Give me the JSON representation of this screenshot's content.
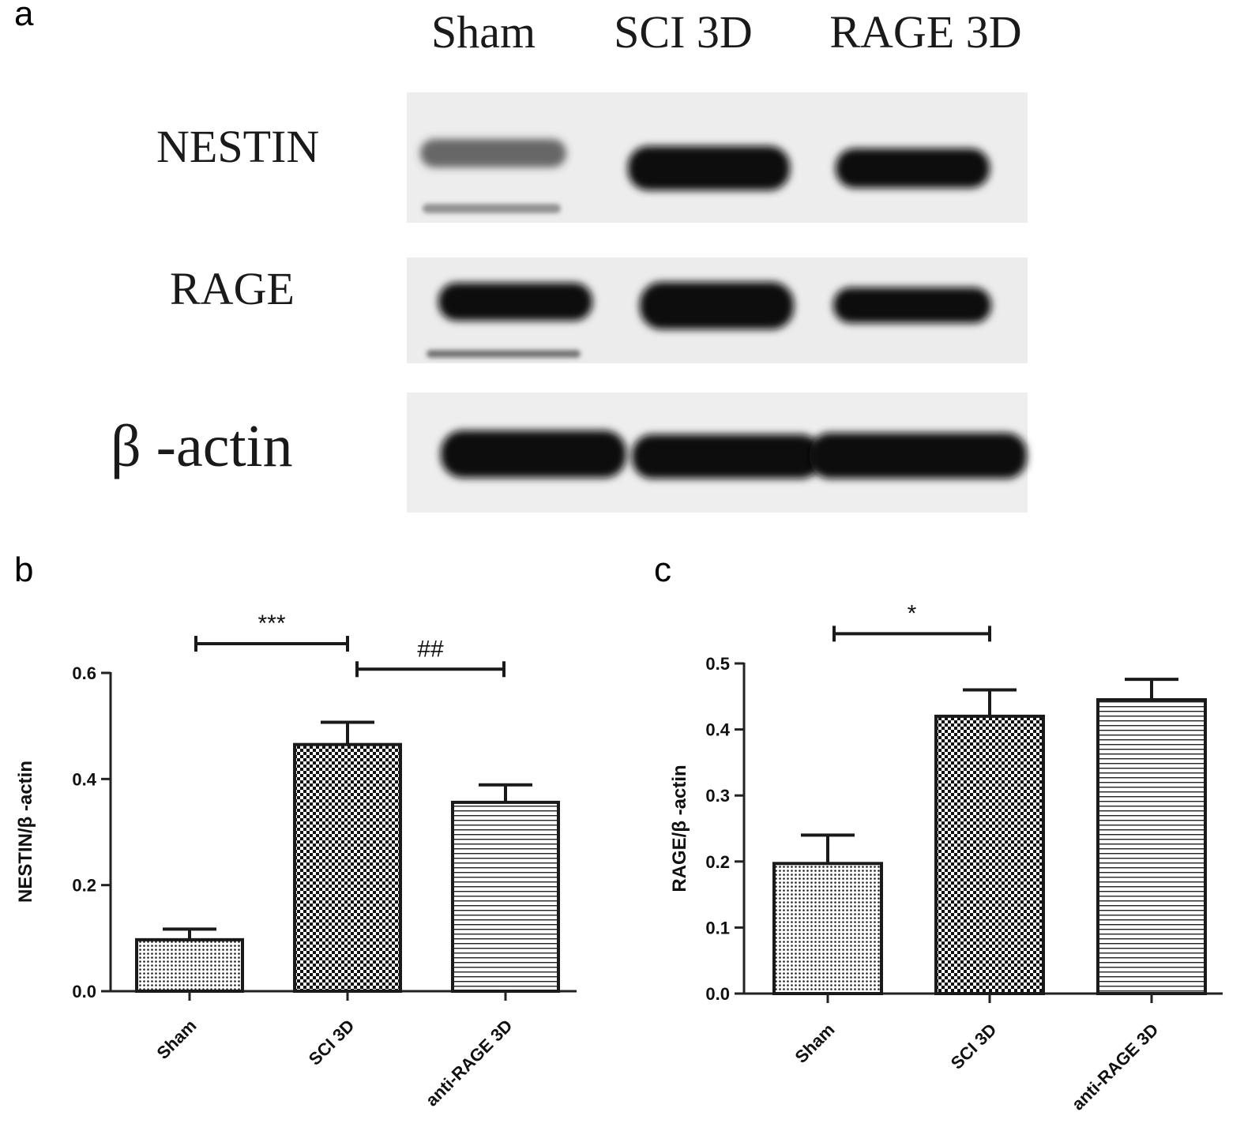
{
  "panels": {
    "a": "a",
    "b": "b",
    "c": "c"
  },
  "blot": {
    "lanes": [
      "Sham",
      "SCI 3D",
      "RAGE 3D"
    ],
    "rows": [
      {
        "label": "NESTIN",
        "intensity": [
          0.55,
          0.95,
          0.9
        ]
      },
      {
        "label": "RAGE",
        "intensity": [
          0.95,
          0.95,
          0.92
        ]
      },
      {
        "label": "β -actin",
        "intensity": [
          0.97,
          0.97,
          0.97
        ]
      }
    ]
  },
  "chart_data": [
    {
      "type": "bar",
      "panel": "b",
      "categories": [
        "Sham",
        "SCI 3D",
        "anti-RAGE 3D"
      ],
      "values": [
        0.097,
        0.465,
        0.356
      ],
      "errors": [
        0.02,
        0.042,
        0.033
      ],
      "patterns": [
        "dots",
        "checker",
        "hlines"
      ],
      "ylabel": "NESTIN/β -actin",
      "ylim": [
        0,
        0.6
      ],
      "yticks": [
        0.0,
        0.2,
        0.4,
        0.6
      ],
      "ytick_labels": [
        "0.0",
        "0.2",
        "0.4",
        "0.6"
      ],
      "significance": [
        {
          "from": 0,
          "to": 1,
          "label": "***",
          "level": 0.655
        },
        {
          "from": 1,
          "to": 2,
          "label": "##",
          "level": 0.607
        }
      ]
    },
    {
      "type": "bar",
      "panel": "c",
      "categories": [
        "Sham",
        "SCI 3D",
        "anti-RAGE 3D"
      ],
      "values": [
        0.197,
        0.42,
        0.445
      ],
      "errors": [
        0.043,
        0.04,
        0.031
      ],
      "patterns": [
        "dots",
        "checker",
        "hlines"
      ],
      "ylabel": "RAGE/β -actin",
      "ylim": [
        0,
        0.5
      ],
      "yticks": [
        0.0,
        0.1,
        0.2,
        0.3,
        0.4,
        0.5
      ],
      "ytick_labels": [
        "0.0",
        "0.1",
        "0.2",
        "0.3",
        "0.4",
        "0.5"
      ],
      "significance": [
        {
          "from": 0,
          "to": 1,
          "label": "*",
          "level": 0.545
        }
      ]
    }
  ]
}
